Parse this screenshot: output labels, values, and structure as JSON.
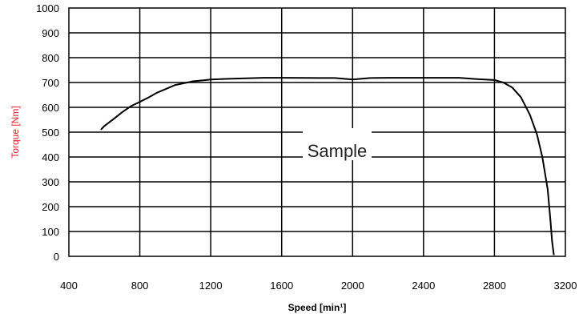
{
  "chart_data": {
    "type": "line",
    "title": "",
    "xlabel": "Speed [min¹]",
    "ylabel": "Torque [Nm]",
    "xlim": [
      400,
      3200
    ],
    "ylim": [
      0,
      1000
    ],
    "x_ticks": [
      400,
      800,
      1200,
      1600,
      2000,
      2400,
      2800,
      3200
    ],
    "y_ticks": [
      0,
      100,
      200,
      300,
      400,
      500,
      600,
      700,
      800,
      900,
      1000
    ],
    "grid": true,
    "legend": "none",
    "watermark": "Sample",
    "colors": {
      "ylabel": "#e8202a",
      "line": "#000000",
      "grid": "#000000"
    },
    "series": [
      {
        "x": [
          580,
          600,
          650,
          700,
          750,
          800,
          850,
          900,
          950,
          1000,
          1100,
          1200,
          1300,
          1400,
          1500,
          1600,
          1800,
          1900,
          2000,
          2100,
          2200,
          2400,
          2600,
          2700,
          2800,
          2850,
          2900,
          2950,
          3000,
          3040,
          3070,
          3100,
          3115,
          3125,
          3135
        ],
        "y": [
          510,
          525,
          552,
          580,
          605,
          622,
          640,
          660,
          675,
          690,
          705,
          712,
          715,
          717,
          719,
          719,
          718,
          718,
          712,
          718,
          719,
          719,
          719,
          714,
          710,
          700,
          680,
          640,
          570,
          490,
          400,
          270,
          150,
          60,
          5
        ]
      }
    ]
  }
}
